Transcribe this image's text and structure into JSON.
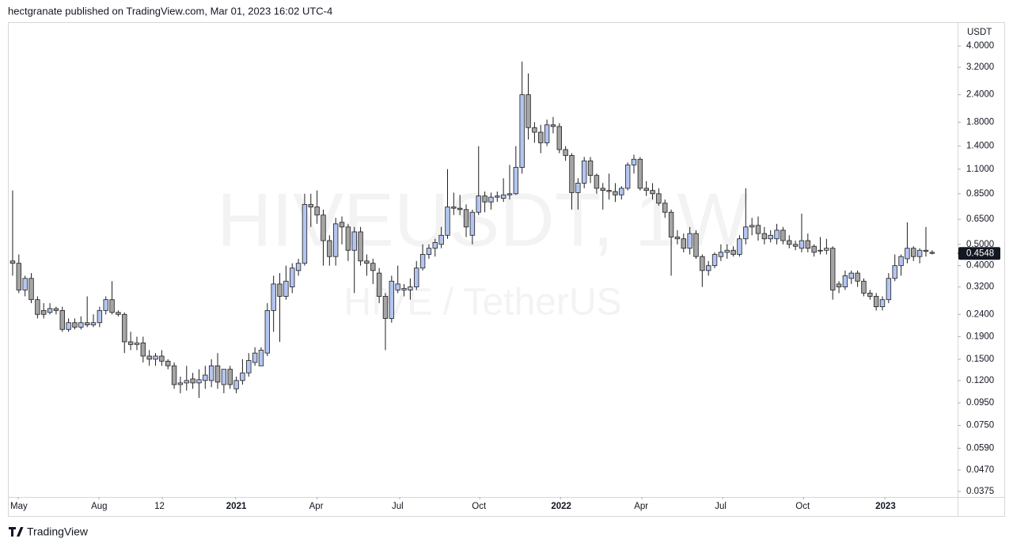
{
  "chart_data": {
    "type": "candlestick",
    "header": "hectgranate published on TradingView.com, Mar 01, 2023 16:02 UTC-4",
    "watermark_symbol": "HIVEUSDT, 1W",
    "watermark_name": "HIVE / TetherUS",
    "y_axis_label": "USDT",
    "logo": "TradingView",
    "log_scale": true,
    "up_color": "#b4c5f1",
    "down_color": "#a5a5a5",
    "border_color": "#1e1e1e",
    "last_price": 0.4548,
    "xlim": [
      -0.76,
      152.1
    ],
    "ylim": [
      0.0354,
      5.05
    ],
    "xticks": [
      {
        "value": 0.9,
        "label": "May"
      },
      {
        "value": 13.9,
        "label": "Aug"
      },
      {
        "value": 24.1,
        "label": "12"
      },
      {
        "value": 35.9,
        "label": "2021"
      },
      {
        "value": 49.0,
        "label": "Apr"
      },
      {
        "value": 62.3,
        "label": "Jul"
      },
      {
        "value": 75.2,
        "label": "Oct"
      },
      {
        "value": 88.2,
        "label": "2022"
      },
      {
        "value": 101.3,
        "label": "Apr"
      },
      {
        "value": 114.3,
        "label": "Jul"
      },
      {
        "value": 127.3,
        "label": "Oct"
      },
      {
        "value": 140.4,
        "label": "2023"
      }
    ],
    "yticks": [
      {
        "value": 4.0,
        "label": "4.0000"
      },
      {
        "value": 3.2,
        "label": "3.2000"
      },
      {
        "value": 2.4,
        "label": "2.4000"
      },
      {
        "value": 1.8,
        "label": "1.8000"
      },
      {
        "value": 1.4,
        "label": "1.4000"
      },
      {
        "value": 1.1,
        "label": "1.1000"
      },
      {
        "value": 0.85,
        "label": "0.8500"
      },
      {
        "value": 0.65,
        "label": "0.6500"
      },
      {
        "value": 0.5,
        "label": "0.5000"
      },
      {
        "value": 0.4,
        "label": "0.4000"
      },
      {
        "value": 0.32,
        "label": "0.3200"
      },
      {
        "value": 0.24,
        "label": "0.2400"
      },
      {
        "value": 0.19,
        "label": "0.1900"
      },
      {
        "value": 0.15,
        "label": "0.1500"
      },
      {
        "value": 0.12,
        "label": "0.1200"
      },
      {
        "value": 0.095,
        "label": "0.0950"
      },
      {
        "value": 0.075,
        "label": "0.0750"
      },
      {
        "value": 0.059,
        "label": "0.0590"
      },
      {
        "value": 0.047,
        "label": "0.0470"
      },
      {
        "value": 0.0375,
        "label": "0.0375"
      }
    ],
    "open": [
      0.42,
      0.41,
      0.31,
      0.35,
      0.28,
      0.25,
      0.245,
      0.255,
      0.25,
      0.205,
      0.22,
      0.21,
      0.22,
      0.215,
      0.22,
      0.25,
      0.28,
      0.245,
      0.24,
      0.18,
      0.175,
      0.178,
      0.155,
      0.15,
      0.155,
      0.147,
      0.14,
      0.115,
      0.117,
      0.122,
      0.117,
      0.12,
      0.12,
      0.14,
      0.115,
      0.135,
      0.11,
      0.12,
      0.13,
      0.145,
      0.14,
      0.16,
      0.25,
      0.33,
      0.29,
      0.32,
      0.38,
      0.41,
      0.76,
      0.74,
      0.68,
      0.52,
      0.44,
      0.63,
      0.6,
      0.47,
      0.57,
      0.42,
      0.41,
      0.37,
      0.29,
      0.23,
      0.31,
      0.31,
      0.31,
      0.32,
      0.39,
      0.45,
      0.48,
      0.5,
      0.55,
      0.74,
      0.73,
      0.72,
      0.55,
      0.7,
      0.83,
      0.78,
      0.82,
      0.81,
      0.84,
      0.85,
      1.12,
      2.4,
      1.7,
      1.62,
      1.45,
      1.75,
      1.72,
      1.35,
      1.27,
      0.86,
      0.95,
      1.2,
      1.03,
      0.9,
      0.88,
      0.87,
      0.84,
      0.9,
      1.15,
      1.22,
      0.9,
      0.88,
      0.85,
      0.77,
      0.7,
      0.54,
      0.53,
      0.48,
      0.56,
      0.44,
      0.38,
      0.4,
      0.44,
      0.46,
      0.47,
      0.45,
      0.53,
      0.6,
      0.61,
      0.56,
      0.53,
      0.53,
      0.58,
      0.52,
      0.5,
      0.48,
      0.52,
      0.49,
      0.47,
      0.47,
      0.48,
      0.33,
      0.32,
      0.35,
      0.37,
      0.34,
      0.3,
      0.29,
      0.26,
      0.28,
      0.35,
      0.4,
      0.43,
      0.48,
      0.44,
      0.47,
      0.46
    ],
    "high": [
      0.88,
      0.45,
      0.36,
      0.37,
      0.29,
      0.27,
      0.27,
      0.26,
      0.26,
      0.23,
      0.23,
      0.235,
      0.29,
      0.24,
      0.26,
      0.29,
      0.34,
      0.25,
      0.245,
      0.2,
      0.19,
      0.19,
      0.165,
      0.16,
      0.165,
      0.15,
      0.145,
      0.125,
      0.14,
      0.13,
      0.135,
      0.14,
      0.15,
      0.16,
      0.135,
      0.14,
      0.125,
      0.15,
      0.16,
      0.17,
      0.17,
      0.27,
      0.36,
      0.37,
      0.4,
      0.41,
      0.43,
      0.85,
      0.85,
      0.88,
      0.72,
      0.55,
      0.66,
      0.67,
      0.62,
      0.6,
      0.6,
      0.45,
      0.43,
      0.39,
      0.3,
      0.36,
      0.4,
      0.33,
      0.35,
      0.42,
      0.5,
      0.5,
      0.53,
      0.6,
      1.1,
      0.86,
      0.84,
      0.76,
      0.72,
      1.4,
      0.87,
      0.86,
      0.87,
      1.0,
      1.15,
      1.4,
      3.4,
      3.0,
      1.8,
      1.75,
      1.85,
      1.9,
      1.78,
      1.4,
      1.3,
      1.0,
      1.25,
      1.25,
      1.05,
      0.95,
      1.05,
      0.95,
      0.92,
      1.18,
      1.28,
      1.25,
      0.97,
      0.95,
      0.9,
      0.8,
      0.72,
      0.58,
      0.56,
      0.6,
      0.58,
      0.45,
      0.42,
      0.46,
      0.5,
      0.5,
      0.49,
      0.55,
      0.9,
      0.66,
      0.67,
      0.6,
      0.58,
      0.62,
      0.6,
      0.55,
      0.52,
      0.69,
      0.56,
      0.5,
      0.54,
      0.53,
      0.49,
      0.34,
      0.38,
      0.38,
      0.38,
      0.35,
      0.31,
      0.3,
      0.29,
      0.37,
      0.45,
      0.45,
      0.63,
      0.49,
      0.48,
      0.6,
      0.47
    ],
    "low": [
      0.36,
      0.3,
      0.29,
      0.27,
      0.23,
      0.23,
      0.24,
      0.24,
      0.2,
      0.2,
      0.205,
      0.205,
      0.21,
      0.21,
      0.21,
      0.24,
      0.24,
      0.235,
      0.16,
      0.165,
      0.165,
      0.145,
      0.14,
      0.14,
      0.14,
      0.135,
      0.11,
      0.105,
      0.108,
      0.11,
      0.1,
      0.11,
      0.112,
      0.11,
      0.105,
      0.11,
      0.105,
      0.115,
      0.125,
      0.14,
      0.14,
      0.155,
      0.2,
      0.18,
      0.28,
      0.3,
      0.36,
      0.4,
      0.6,
      0.62,
      0.4,
      0.4,
      0.4,
      0.5,
      0.42,
      0.3,
      0.4,
      0.36,
      0.33,
      0.27,
      0.165,
      0.22,
      0.3,
      0.29,
      0.28,
      0.31,
      0.38,
      0.43,
      0.44,
      0.48,
      0.53,
      0.68,
      0.68,
      0.54,
      0.5,
      0.68,
      0.7,
      0.72,
      0.78,
      0.78,
      0.8,
      0.84,
      1.05,
      1.5,
      1.45,
      1.3,
      1.4,
      1.6,
      1.3,
      1.2,
      0.72,
      0.72,
      0.9,
      0.95,
      0.85,
      0.72,
      0.8,
      0.78,
      0.8,
      0.88,
      1.05,
      0.88,
      0.83,
      0.8,
      0.75,
      0.66,
      0.36,
      0.5,
      0.46,
      0.45,
      0.43,
      0.32,
      0.36,
      0.39,
      0.42,
      0.43,
      0.44,
      0.44,
      0.5,
      0.55,
      0.52,
      0.5,
      0.51,
      0.5,
      0.5,
      0.48,
      0.47,
      0.46,
      0.46,
      0.44,
      0.45,
      0.45,
      0.28,
      0.3,
      0.31,
      0.33,
      0.32,
      0.29,
      0.28,
      0.25,
      0.25,
      0.27,
      0.34,
      0.36,
      0.41,
      0.42,
      0.41,
      0.44,
      0.45
    ],
    "close": [
      0.41,
      0.31,
      0.35,
      0.28,
      0.24,
      0.24,
      0.255,
      0.25,
      0.205,
      0.22,
      0.21,
      0.22,
      0.215,
      0.22,
      0.25,
      0.28,
      0.245,
      0.24,
      0.18,
      0.175,
      0.178,
      0.155,
      0.15,
      0.155,
      0.147,
      0.14,
      0.115,
      0.117,
      0.12,
      0.117,
      0.121,
      0.127,
      0.14,
      0.118,
      0.135,
      0.115,
      0.12,
      0.13,
      0.148,
      0.16,
      0.165,
      0.25,
      0.33,
      0.29,
      0.34,
      0.39,
      0.41,
      0.76,
      0.74,
      0.68,
      0.52,
      0.44,
      0.62,
      0.6,
      0.47,
      0.57,
      0.42,
      0.41,
      0.38,
      0.29,
      0.23,
      0.34,
      0.33,
      0.315,
      0.32,
      0.39,
      0.45,
      0.48,
      0.51,
      0.55,
      0.74,
      0.73,
      0.72,
      0.6,
      0.7,
      0.83,
      0.78,
      0.82,
      0.83,
      0.84,
      0.85,
      1.12,
      2.4,
      1.7,
      1.62,
      1.45,
      1.75,
      1.72,
      1.35,
      1.27,
      0.86,
      0.95,
      1.2,
      1.03,
      0.9,
      0.88,
      0.87,
      0.84,
      0.9,
      1.15,
      1.22,
      0.9,
      0.88,
      0.85,
      0.77,
      0.7,
      0.54,
      0.53,
      0.48,
      0.56,
      0.44,
      0.38,
      0.4,
      0.45,
      0.46,
      0.47,
      0.45,
      0.53,
      0.6,
      0.61,
      0.56,
      0.53,
      0.55,
      0.58,
      0.52,
      0.5,
      0.49,
      0.52,
      0.48,
      0.46,
      0.47,
      0.48,
      0.31,
      0.32,
      0.36,
      0.37,
      0.34,
      0.3,
      0.29,
      0.26,
      0.28,
      0.35,
      0.4,
      0.44,
      0.48,
      0.44,
      0.47,
      0.465,
      0.4548
    ]
  }
}
